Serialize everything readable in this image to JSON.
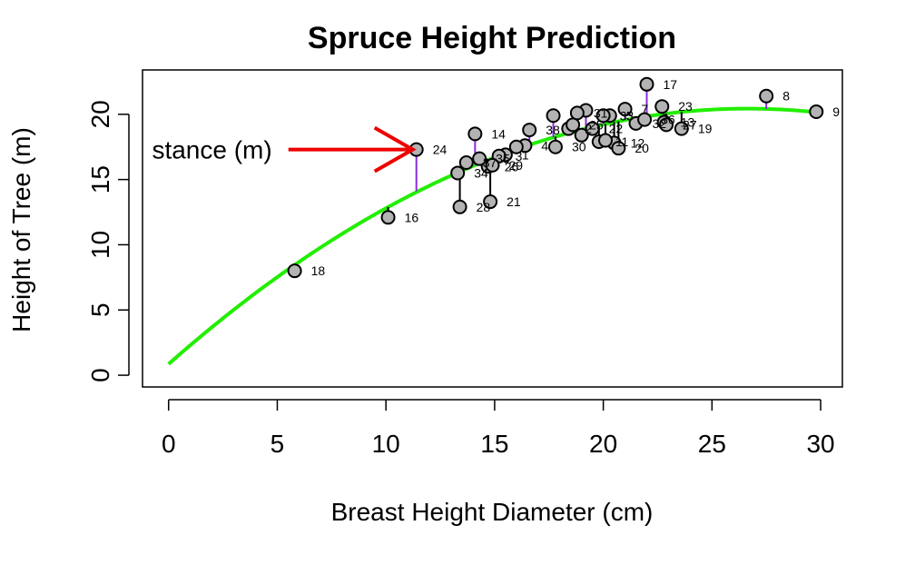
{
  "chart_data": {
    "type": "scatter",
    "title": "Spruce Height Prediction",
    "xlabel": "Breast Height Diameter (cm)",
    "ylabel": "Height of Tree (m)",
    "xlim": [
      -1.2,
      31
    ],
    "ylim": [
      -0.9,
      23.4
    ],
    "x_ticks": [
      0,
      5,
      10,
      15,
      20,
      25,
      30
    ],
    "y_ticks": [
      0,
      5,
      10,
      15,
      20
    ],
    "grid": false,
    "legend": "none",
    "colors": {
      "fitted_curve": "#22ee00",
      "positive_residual": "#8a2be2",
      "negative_residual": "#000000",
      "point_fill": "#b3b3b3",
      "point_stroke": "#000000",
      "arrow": "#ee0000"
    },
    "fitted_curve": {
      "form": "quadratic",
      "coefficients": [
        0.86,
        1.47,
        -0.0276
      ],
      "x_range": [
        0,
        29.8
      ]
    },
    "points": [
      {
        "id": "1",
        "x": 15.5,
        "y": 16.9
      },
      {
        "id": "2",
        "x": 18.4,
        "y": 18.9
      },
      {
        "id": "3",
        "x": 15.2,
        "y": 16.8
      },
      {
        "id": "4",
        "x": 16.4,
        "y": 17.6
      },
      {
        "id": "5",
        "x": 20.3,
        "y": 19.9
      },
      {
        "id": "6",
        "x": 19.2,
        "y": 20.3
      },
      {
        "id": "7",
        "x": 21.0,
        "y": 20.4
      },
      {
        "id": "8",
        "x": 27.5,
        "y": 21.4
      },
      {
        "id": "9",
        "x": 29.8,
        "y": 20.2
      },
      {
        "id": "10",
        "x": 19.0,
        "y": 18.4
      },
      {
        "id": "11",
        "x": 19.8,
        "y": 17.9
      },
      {
        "id": "12",
        "x": 20.5,
        "y": 17.8
      },
      {
        "id": "13",
        "x": 22.8,
        "y": 19.4
      },
      {
        "id": "14",
        "x": 14.1,
        "y": 18.5
      },
      {
        "id": "15",
        "x": 16.0,
        "y": 17.5
      },
      {
        "id": "16",
        "x": 10.1,
        "y": 12.1
      },
      {
        "id": "17",
        "x": 22.0,
        "y": 22.3
      },
      {
        "id": "18",
        "x": 5.8,
        "y": 8.0
      },
      {
        "id": "19",
        "x": 23.6,
        "y": 18.9
      },
      {
        "id": "20",
        "x": 20.7,
        "y": 17.4
      },
      {
        "id": "21",
        "x": 14.8,
        "y": 13.3
      },
      {
        "id": "22",
        "x": 19.5,
        "y": 18.9
      },
      {
        "id": "23",
        "x": 22.7,
        "y": 20.6
      },
      {
        "id": "24",
        "x": 11.4,
        "y": 17.3
      },
      {
        "id": "25",
        "x": 18.6,
        "y": 19.2
      },
      {
        "id": "26",
        "x": 14.7,
        "y": 16.0
      },
      {
        "id": "27",
        "x": 22.9,
        "y": 19.2
      },
      {
        "id": "28",
        "x": 13.4,
        "y": 12.9
      },
      {
        "id": "29",
        "x": 14.9,
        "y": 16.1
      },
      {
        "id": "30",
        "x": 17.8,
        "y": 17.5
      },
      {
        "id": "31",
        "x": 18.8,
        "y": 20.1
      },
      {
        "id": "32",
        "x": 21.5,
        "y": 19.3
      },
      {
        "id": "33",
        "x": 20.0,
        "y": 19.9
      },
      {
        "id": "34",
        "x": 13.3,
        "y": 15.5
      },
      {
        "id": "35",
        "x": 14.3,
        "y": 16.6
      },
      {
        "id": "36",
        "x": 21.9,
        "y": 19.6
      },
      {
        "id": "37",
        "x": 13.7,
        "y": 16.3
      },
      {
        "id": "38",
        "x": 16.6,
        "y": 18.8
      },
      {
        "id": "39",
        "x": 17.7,
        "y": 19.9
      },
      {
        "id": "40",
        "x": 20.1,
        "y": 18.0
      }
    ],
    "labeled_points": [
      "1",
      "2",
      "3",
      "4",
      "5",
      "7",
      "8",
      "9",
      "11",
      "12",
      "13",
      "14",
      "16",
      "17",
      "18",
      "19",
      "20",
      "21",
      "22",
      "23",
      "24",
      "25",
      "26",
      "27",
      "28",
      "29",
      "30",
      "31",
      "32",
      "33",
      "34",
      "35",
      "36",
      "37",
      "38"
    ],
    "highlight": {
      "id": "24",
      "fitted_y": 14.1
    },
    "annotations": [
      {
        "type": "arrow",
        "target": "24",
        "text": "stance (m)"
      }
    ]
  }
}
